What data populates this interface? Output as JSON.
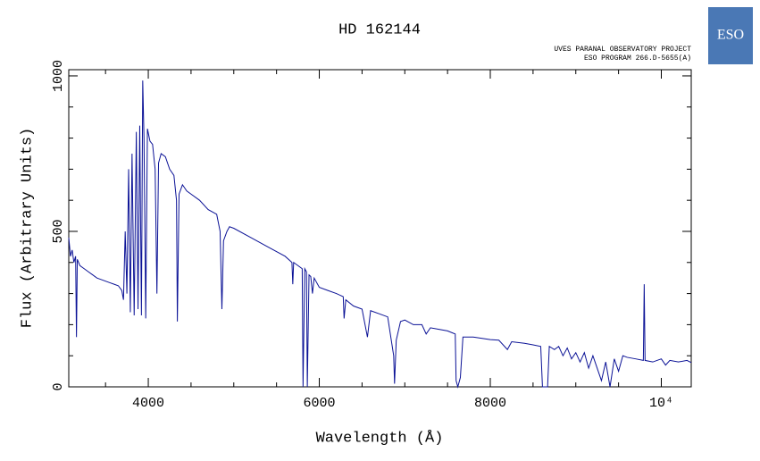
{
  "chart_data": {
    "type": "line",
    "title": "HD 162144",
    "subtitle": [
      "UVES PARANAL OBSERVATORY PROJECT",
      "ESO PROGRAM 266.D-5655(A)"
    ],
    "logo": "ESO",
    "xlabel": "Wavelength (Å)",
    "ylabel": "Flux (Arbitrary Units)",
    "color": "#0b1296",
    "xlim": [
      3070,
      10350
    ],
    "ylim": [
      0,
      1020
    ],
    "xticks": [
      4000,
      6000,
      8000,
      {
        "value": 10000,
        "label": "10⁴"
      }
    ],
    "yticks": [
      0,
      500,
      1000
    ],
    "xminorticks": [
      3500,
      4500,
      5000,
      5500,
      6500,
      7000,
      7500,
      8500,
      9000,
      9500
    ],
    "yminorticks": [
      100,
      200,
      300,
      400,
      600,
      700,
      800,
      900
    ],
    "x": [
      3070,
      3090,
      3110,
      3130,
      3150,
      3160,
      3170,
      3200,
      3250,
      3300,
      3350,
      3400,
      3450,
      3500,
      3550,
      3600,
      3650,
      3690,
      3710,
      3730,
      3750,
      3770,
      3790,
      3810,
      3835,
      3860,
      3880,
      3900,
      3920,
      3935,
      3950,
      3970,
      3990,
      4020,
      4050,
      4080,
      4101,
      4120,
      4150,
      4200,
      4250,
      4300,
      4330,
      4340,
      4360,
      4400,
      4450,
      4500,
      4600,
      4700,
      4800,
      4840,
      4861,
      4880,
      4920,
      4950,
      5000,
      5200,
      5400,
      5600,
      5680,
      5690,
      5700,
      5800,
      5810,
      5830,
      5850,
      5860,
      5880,
      5900,
      5920,
      5940,
      6000,
      6100,
      6200,
      6280,
      6290,
      6310,
      6400,
      6500,
      6563,
      6600,
      6700,
      6800,
      6870,
      6880,
      6900,
      6950,
      7000,
      7100,
      7200,
      7250,
      7300,
      7400,
      7500,
      7590,
      7600,
      7620,
      7650,
      7680,
      7800,
      8000,
      8100,
      8200,
      8250,
      8400,
      8500,
      8590,
      8610,
      8670,
      8690,
      8750,
      8800,
      8850,
      8900,
      8950,
      9000,
      9050,
      9100,
      9150,
      9200,
      9300,
      9350,
      9400,
      9450,
      9500,
      9550,
      9600,
      9700,
      9790,
      9800,
      9810,
      9900,
      10000,
      10050,
      10100,
      10200,
      10300,
      10350
    ],
    "values": [
      480,
      420,
      440,
      400,
      420,
      160,
      410,
      390,
      380,
      370,
      360,
      350,
      345,
      340,
      335,
      330,
      325,
      310,
      280,
      500,
      300,
      700,
      240,
      750,
      230,
      820,
      250,
      840,
      230,
      985,
      800,
      220,
      830,
      790,
      780,
      700,
      300,
      720,
      750,
      740,
      700,
      680,
      600,
      210,
      620,
      650,
      630,
      620,
      600,
      570,
      555,
      500,
      250,
      470,
      500,
      515,
      510,
      480,
      450,
      420,
      400,
      330,
      400,
      380,
      0,
      380,
      370,
      0,
      360,
      355,
      300,
      350,
      320,
      310,
      300,
      290,
      220,
      280,
      260,
      250,
      160,
      245,
      235,
      225,
      100,
      10,
      150,
      210,
      215,
      200,
      200,
      170,
      190,
      185,
      180,
      170,
      20,
      0,
      30,
      160,
      160,
      152,
      150,
      120,
      145,
      140,
      135,
      130,
      0,
      0,
      130,
      120,
      130,
      100,
      125,
      90,
      110,
      80,
      110,
      60,
      100,
      20,
      80,
      0,
      90,
      50,
      100,
      95,
      90,
      85,
      330,
      85,
      80,
      90,
      70,
      85,
      80,
      85,
      78
    ]
  }
}
